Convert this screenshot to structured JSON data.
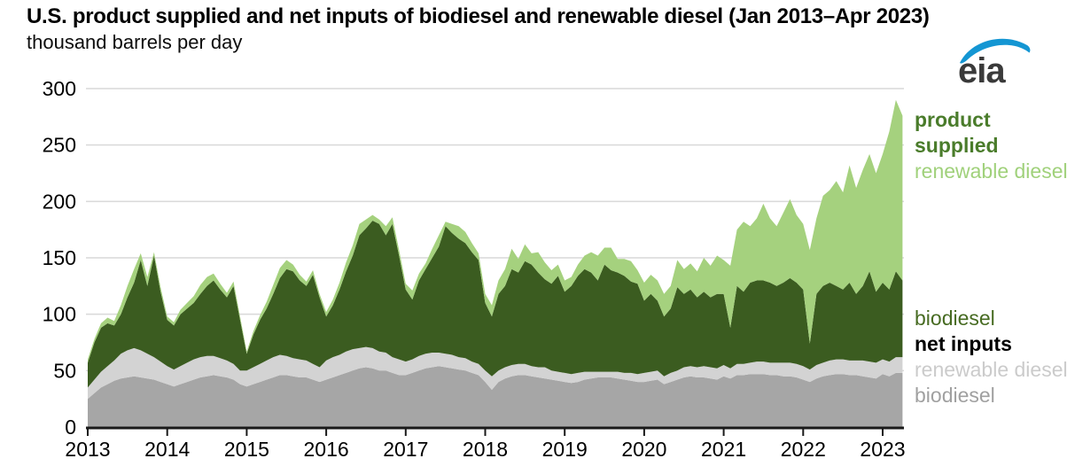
{
  "header": {
    "title": "U.S. product supplied and net inputs of biodiesel and renewable diesel (Jan 2013–Apr 2023)",
    "subtitle": "thousand barrels per day",
    "logo_text": "eia"
  },
  "legend": {
    "product_supplied_label": "product supplied",
    "ps_renewable_diesel_label": "renewable diesel",
    "ps_biodiesel_label": "biodiesel",
    "net_inputs_label": "net inputs",
    "ni_renewable_diesel_label": "renewable diesel",
    "ni_biodiesel_label": "biodiesel"
  },
  "colors": {
    "fill_biodiesel_net_inputs": "#a6a6a6",
    "fill_renewable_diesel_net_inputs": "#d3d3d3",
    "fill_biodiesel_product_supplied": "#3b5c20",
    "fill_renewable_diesel_product_supplied": "#a5d17e",
    "legend_product_supplied_green": "#4a7c2b",
    "legend_light_green": "#a0d17b",
    "legend_dark_green": "#476b22",
    "legend_black": "#000000",
    "legend_light_gray": "#cbcbcb",
    "legend_gray": "#a0a0a0",
    "gridline": "#d9d9d9",
    "axis": "#1a1a1a",
    "eia_blue": "#1496d3",
    "eia_text": "#3a3a3a"
  },
  "chart_data": {
    "type": "area",
    "stacked": true,
    "title": "U.S. product supplied and net inputs of biodiesel and renewable diesel (Jan 2013–Apr 2023)",
    "ylabel": "thousand barrels per day",
    "xlabel": "",
    "ylim": [
      0,
      300
    ],
    "y_ticks": [
      0,
      50,
      100,
      150,
      200,
      250,
      300
    ],
    "x_tick_labels": [
      "2013",
      "2014",
      "2015",
      "2016",
      "2017",
      "2018",
      "2019",
      "2020",
      "2021",
      "2022",
      "2023"
    ],
    "grid": true,
    "legend_position": "right",
    "x_months": [
      "2013-01",
      "2013-02",
      "2013-03",
      "2013-04",
      "2013-05",
      "2013-06",
      "2013-07",
      "2013-08",
      "2013-09",
      "2013-10",
      "2013-11",
      "2013-12",
      "2014-01",
      "2014-02",
      "2014-03",
      "2014-04",
      "2014-05",
      "2014-06",
      "2014-07",
      "2014-08",
      "2014-09",
      "2014-10",
      "2014-11",
      "2014-12",
      "2015-01",
      "2015-02",
      "2015-03",
      "2015-04",
      "2015-05",
      "2015-06",
      "2015-07",
      "2015-08",
      "2015-09",
      "2015-10",
      "2015-11",
      "2015-12",
      "2016-01",
      "2016-02",
      "2016-03",
      "2016-04",
      "2016-05",
      "2016-06",
      "2016-07",
      "2016-08",
      "2016-09",
      "2016-10",
      "2016-11",
      "2016-12",
      "2017-01",
      "2017-02",
      "2017-03",
      "2017-04",
      "2017-05",
      "2017-06",
      "2017-07",
      "2017-08",
      "2017-09",
      "2017-10",
      "2017-11",
      "2017-12",
      "2018-01",
      "2018-02",
      "2018-03",
      "2018-04",
      "2018-05",
      "2018-06",
      "2018-07",
      "2018-08",
      "2018-09",
      "2018-10",
      "2018-11",
      "2018-12",
      "2019-01",
      "2019-02",
      "2019-03",
      "2019-04",
      "2019-05",
      "2019-06",
      "2019-07",
      "2019-08",
      "2019-09",
      "2019-10",
      "2019-11",
      "2019-12",
      "2020-01",
      "2020-02",
      "2020-03",
      "2020-04",
      "2020-05",
      "2020-06",
      "2020-07",
      "2020-08",
      "2020-09",
      "2020-10",
      "2020-11",
      "2020-12",
      "2021-01",
      "2021-02",
      "2021-03",
      "2021-04",
      "2021-05",
      "2021-06",
      "2021-07",
      "2021-08",
      "2021-09",
      "2021-10",
      "2021-11",
      "2021-12",
      "2022-01",
      "2022-02",
      "2022-03",
      "2022-04",
      "2022-05",
      "2022-06",
      "2022-07",
      "2022-08",
      "2022-09",
      "2022-10",
      "2022-11",
      "2022-12",
      "2023-01",
      "2023-02",
      "2023-03",
      "2023-04"
    ],
    "series": [
      {
        "id": "net-inputs-biodiesel",
        "name": "net inputs biodiesel",
        "color": "#a6a6a6",
        "values": [
          25,
          30,
          35,
          38,
          41,
          43,
          44,
          45,
          44,
          43,
          42,
          40,
          38,
          36,
          38,
          40,
          42,
          44,
          45,
          46,
          45,
          44,
          42,
          38,
          36,
          38,
          40,
          42,
          44,
          46,
          46,
          45,
          44,
          44,
          42,
          40,
          42,
          44,
          46,
          48,
          50,
          52,
          53,
          52,
          50,
          50,
          48,
          46,
          46,
          48,
          50,
          52,
          53,
          54,
          53,
          52,
          51,
          50,
          48,
          46,
          40,
          33,
          40,
          43,
          45,
          46,
          46,
          45,
          44,
          43,
          42,
          41,
          40,
          39,
          40,
          42,
          43,
          44,
          44,
          44,
          43,
          42,
          41,
          40,
          40,
          41,
          42,
          38,
          40,
          42,
          44,
          45,
          44,
          44,
          43,
          42,
          45,
          43,
          46,
          46,
          47,
          47,
          47,
          46,
          46,
          45,
          45,
          44,
          42,
          40,
          43,
          45,
          46,
          47,
          47,
          46,
          46,
          45,
          44,
          43,
          47,
          45,
          48,
          48
        ]
      },
      {
        "id": "net-inputs-renewable-diesel",
        "name": "net inputs renewable diesel",
        "color": "#d3d3d3",
        "values": [
          10,
          12,
          14,
          16,
          18,
          22,
          24,
          25,
          24,
          22,
          20,
          18,
          16,
          15,
          16,
          17,
          18,
          18,
          18,
          17,
          16,
          15,
          14,
          12,
          14,
          15,
          16,
          17,
          18,
          18,
          17,
          16,
          16,
          15,
          14,
          13,
          17,
          18,
          18,
          19,
          19,
          18,
          18,
          18,
          17,
          16,
          14,
          14,
          12,
          12,
          13,
          13,
          13,
          12,
          12,
          12,
          11,
          11,
          10,
          10,
          10,
          12,
          10,
          10,
          10,
          10,
          10,
          9,
          9,
          10,
          8,
          8,
          8,
          8,
          8,
          7,
          6,
          5,
          5,
          5,
          6,
          6,
          7,
          7,
          8,
          8,
          8,
          7,
          8,
          8,
          9,
          9,
          9,
          10,
          10,
          10,
          10,
          9,
          10,
          10,
          10,
          11,
          11,
          11,
          11,
          12,
          12,
          12,
          12,
          11,
          12,
          12,
          13,
          13,
          13,
          13,
          13,
          14,
          14,
          14,
          13,
          13,
          14,
          14
        ]
      },
      {
        "id": "product-supplied-biodiesel",
        "name": "product supplied biodiesel",
        "color": "#3b5c20",
        "values": [
          22,
          33,
          39,
          38,
          31,
          35,
          47,
          58,
          80,
          60,
          90,
          62,
          41,
          39,
          46,
          48,
          50,
          56,
          62,
          67,
          61,
          56,
          69,
          45,
          15,
          29,
          39,
          46,
          56,
          68,
          77,
          77,
          70,
          66,
          79,
          62,
          39,
          46,
          58,
          71,
          83,
          100,
          105,
          113,
          113,
          104,
          118,
          92,
          64,
          53,
          67,
          75,
          84,
          94,
          113,
          108,
          105,
          102,
          97,
          92,
          60,
          53,
          68,
          72,
          85,
          81,
          91,
          90,
          84,
          78,
          77,
          85,
          72,
          78,
          86,
          91,
          88,
          81,
          95,
          90,
          88,
          86,
          81,
          80,
          64,
          69,
          62,
          53,
          57,
          74,
          65,
          68,
          62,
          66,
          62,
          66,
          63,
          36,
          69,
          64,
          71,
          72,
          72,
          71,
          68,
          71,
          75,
          72,
          68,
          23,
          63,
          68,
          69,
          65,
          62,
          69,
          59,
          66,
          80,
          63,
          68,
          64,
          76,
          68
        ]
      },
      {
        "id": "product-supplied-renewable-diesel",
        "name": "product supplied renewable diesel",
        "color": "#a5d17e",
        "values": [
          3,
          3,
          4,
          5,
          4,
          8,
          10,
          12,
          6,
          8,
          3,
          4,
          3,
          3,
          4,
          5,
          6,
          8,
          8,
          6,
          5,
          4,
          4,
          3,
          2,
          3,
          4,
          6,
          8,
          9,
          8,
          6,
          5,
          4,
          4,
          3,
          4,
          5,
          6,
          8,
          9,
          10,
          8,
          5,
          4,
          8,
          6,
          5,
          5,
          8,
          6,
          5,
          8,
          10,
          4,
          8,
          11,
          10,
          8,
          6,
          8,
          10,
          12,
          15,
          18,
          12,
          15,
          10,
          18,
          15,
          12,
          10,
          10,
          8,
          10,
          12,
          18,
          22,
          15,
          20,
          12,
          15,
          18,
          12,
          16,
          17,
          18,
          20,
          20,
          24,
          22,
          23,
          23,
          30,
          28,
          34,
          30,
          55,
          50,
          62,
          50,
          55,
          68,
          57,
          53,
          62,
          70,
          60,
          58,
          83,
          67,
          80,
          82,
          93,
          86,
          104,
          94,
          103,
          104,
          105,
          114,
          140,
          152,
          146
        ]
      }
    ]
  }
}
